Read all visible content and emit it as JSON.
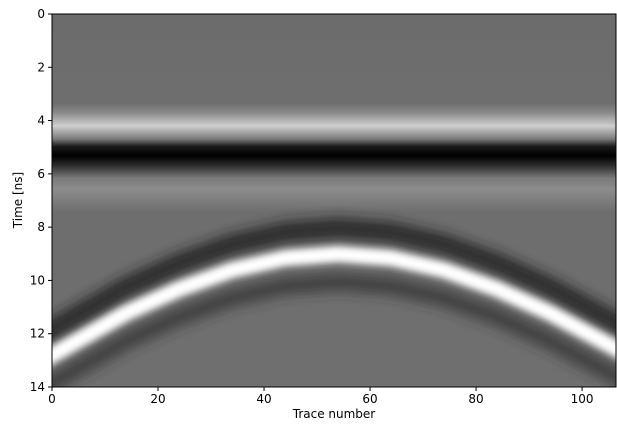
{
  "chart_data": {
    "type": "image",
    "xlabel": "Trace number",
    "ylabel": "Time [ns]",
    "xlim": [
      0,
      106.4
    ],
    "ylim": [
      14,
      0
    ],
    "xticks": [
      0,
      20,
      40,
      60,
      80,
      100
    ],
    "yticks": [
      0,
      2,
      4,
      6,
      8,
      10,
      12,
      14
    ],
    "colormap": "gray"
  }
}
